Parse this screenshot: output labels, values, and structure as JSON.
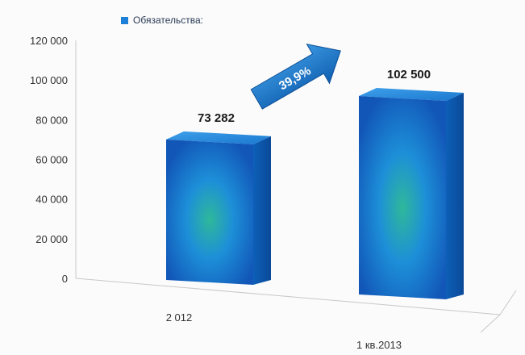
{
  "chart_data": {
    "type": "bar",
    "categories": [
      "2 012",
      "1 кв.2013"
    ],
    "series": [
      {
        "name": "Обязательства:",
        "values": [
          73282,
          102500
        ]
      }
    ],
    "data_labels": [
      "73 282",
      "102 500"
    ],
    "ylim": [
      0,
      120000
    ],
    "yticks": [
      0,
      20000,
      40000,
      60000,
      80000,
      100000,
      120000
    ],
    "ytick_labels": [
      "0",
      "20 000",
      "40 000",
      "60 000",
      "80 000",
      "100 000",
      "120 000"
    ],
    "annotation": {
      "text": "39,9%"
    },
    "legend_position": "top-left",
    "grid": false,
    "colors": {
      "bar": "#1d7fd6",
      "bar_dark": "#0b55a8",
      "bar_glow": "#2fb89a",
      "arrow": "#1670c4"
    }
  }
}
